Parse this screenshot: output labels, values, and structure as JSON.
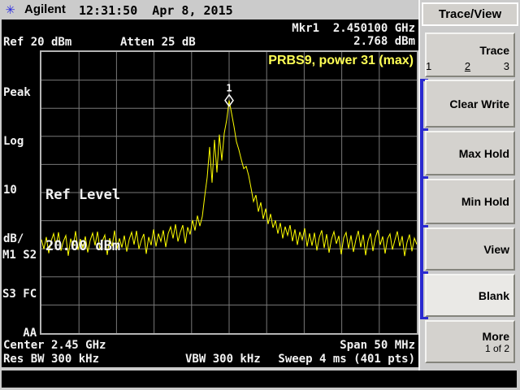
{
  "header": {
    "brand": "Agilent",
    "datetime": "12:31:50  Apr 8, 2015"
  },
  "screen": {
    "ref_label": "Ref 20 dBm",
    "atten_label": "Atten 25 dB",
    "marker_readout": {
      "line1": "Mkr1  2.450100 GHz",
      "line2": "2.768 dBm"
    },
    "annotation": "PRBS9, power 31 (max)",
    "amplitude_labels": {
      "l0": "Peak",
      "l1": "Log",
      "l2": "10",
      "l3": "dB/"
    },
    "status_labels": {
      "l0": "M1 S2",
      "l1": "S3 FC",
      "l2": "   AA"
    },
    "ref_overlay": {
      "line1": "Ref Level",
      "line2": "20.00 dBm"
    },
    "footer": {
      "center": "Center 2.45 GHz",
      "span": "Span 50 MHz",
      "rbw": "Res BW 300 kHz",
      "vbw": "VBW 300 kHz",
      "sweep": "Sweep 4 ms (401 pts)"
    }
  },
  "menu": {
    "title": "Trace/View",
    "trace": {
      "label": "Trace",
      "options": [
        "1",
        "2",
        "3"
      ],
      "selected": "2"
    },
    "items": [
      {
        "label": "Clear Write",
        "active": false
      },
      {
        "label": "Max Hold",
        "active": false
      },
      {
        "label": "Min Hold",
        "active": false
      },
      {
        "label": "View",
        "active": false
      },
      {
        "label": "Blank",
        "active": true
      },
      {
        "label": "More",
        "sublabel": "1 of 2",
        "active": false
      }
    ]
  },
  "colors": {
    "trace": "#ffff00",
    "grid_line": "#787878",
    "grid_border": "#b4b4b4",
    "marker": "#ffffff",
    "screen_text": "#f2f2f2",
    "annotation_yellow": "#ffff55",
    "accent_blue": "#2a2ad0",
    "panel_gray": "#cbcbcb"
  },
  "chart_data": {
    "type": "line",
    "title": "PRBS9, power 31 (max)",
    "x_axis": {
      "center": "2.45 GHz",
      "span": "50 MHz",
      "start_ghz": 2.425,
      "stop_ghz": 2.475,
      "sweep": "4 ms",
      "points": 401
    },
    "y_axis": {
      "scale": "Log",
      "ref_level_dbm": 20,
      "db_per_div": 10,
      "top_dbm": 20,
      "bottom_dbm": -80,
      "atten_db": 25
    },
    "grid": {
      "columns": 10,
      "rows": 10
    },
    "marker": {
      "number": "1",
      "frequency": "2.450100 GHz",
      "amplitude_dbm": 2.768
    },
    "trace_color": "#ffff00",
    "trace_dbm": [
      -46.7,
      -50.1,
      -45.8,
      -51.6,
      -47.2,
      -44.6,
      -49.0,
      -44.1,
      -50.7,
      -47.4,
      -45.3,
      -52.5,
      -46.4,
      -49.3,
      -43.7,
      -50.4,
      -46.5,
      -49.8,
      -45.6,
      -51.3,
      -47.0,
      -44.4,
      -48.8,
      -43.9,
      -50.4,
      -47.2,
      -45.1,
      -52.2,
      -46.2,
      -49.1,
      -43.5,
      -50.1,
      -46.3,
      -49.5,
      -45.3,
      -51.0,
      -46.7,
      -44.1,
      -48.5,
      -43.6,
      -50.1,
      -46.9,
      -44.7,
      -51.8,
      -45.8,
      -48.7,
      -43.1,
      -49.2,
      -44.6,
      -47.4,
      -43.4,
      -49.4,
      -44.6,
      -42.2,
      -46.3,
      -41.3,
      -47.4,
      -44.1,
      -41.6,
      -48.1,
      -42.3,
      -44.9,
      -39.8,
      -43.5,
      -38.2,
      -41.9,
      -38.5,
      -31.2,
      -24.6,
      -13.8,
      -26.5,
      -11.2,
      -22.9,
      -9.4,
      -18.6,
      -8.9,
      -4.2,
      2.768,
      -1.8,
      -6.5,
      -11.9,
      -14.8,
      -18.3,
      -21.5,
      -20.7,
      -23.9,
      -28.4,
      -33.2,
      -30.9,
      -36.8,
      -33.5,
      -39.4,
      -35.7,
      -41.2,
      -37.6,
      -42.5,
      -39.9,
      -44.6,
      -40.8,
      -46.3,
      -42.1,
      -45.2,
      -41.6,
      -47.3,
      -43.1,
      -48.6,
      -44.0,
      -46.8,
      -42.7,
      -49.2,
      -44.5,
      -48.9,
      -44.3,
      -50.6,
      -45.9,
      -43.4,
      -49.7,
      -44.8,
      -51.4,
      -46.6,
      -43.9,
      -48.2,
      -45.4,
      -52.0,
      -46.1,
      -44.2,
      -49.9,
      -45.2,
      -51.1,
      -46.8,
      -43.6,
      -49.4,
      -45.0,
      -52.3,
      -47.1,
      -44.5,
      -50.8,
      -46.0,
      -43.3,
      -48.6,
      -45.6,
      -51.7,
      -46.4,
      -44.7,
      -50.3,
      -46.9,
      -43.8,
      -49.1,
      -45.5,
      -52.6,
      -47.7,
      -44.9,
      -50.9,
      -46.2,
      -48.4
    ]
  }
}
